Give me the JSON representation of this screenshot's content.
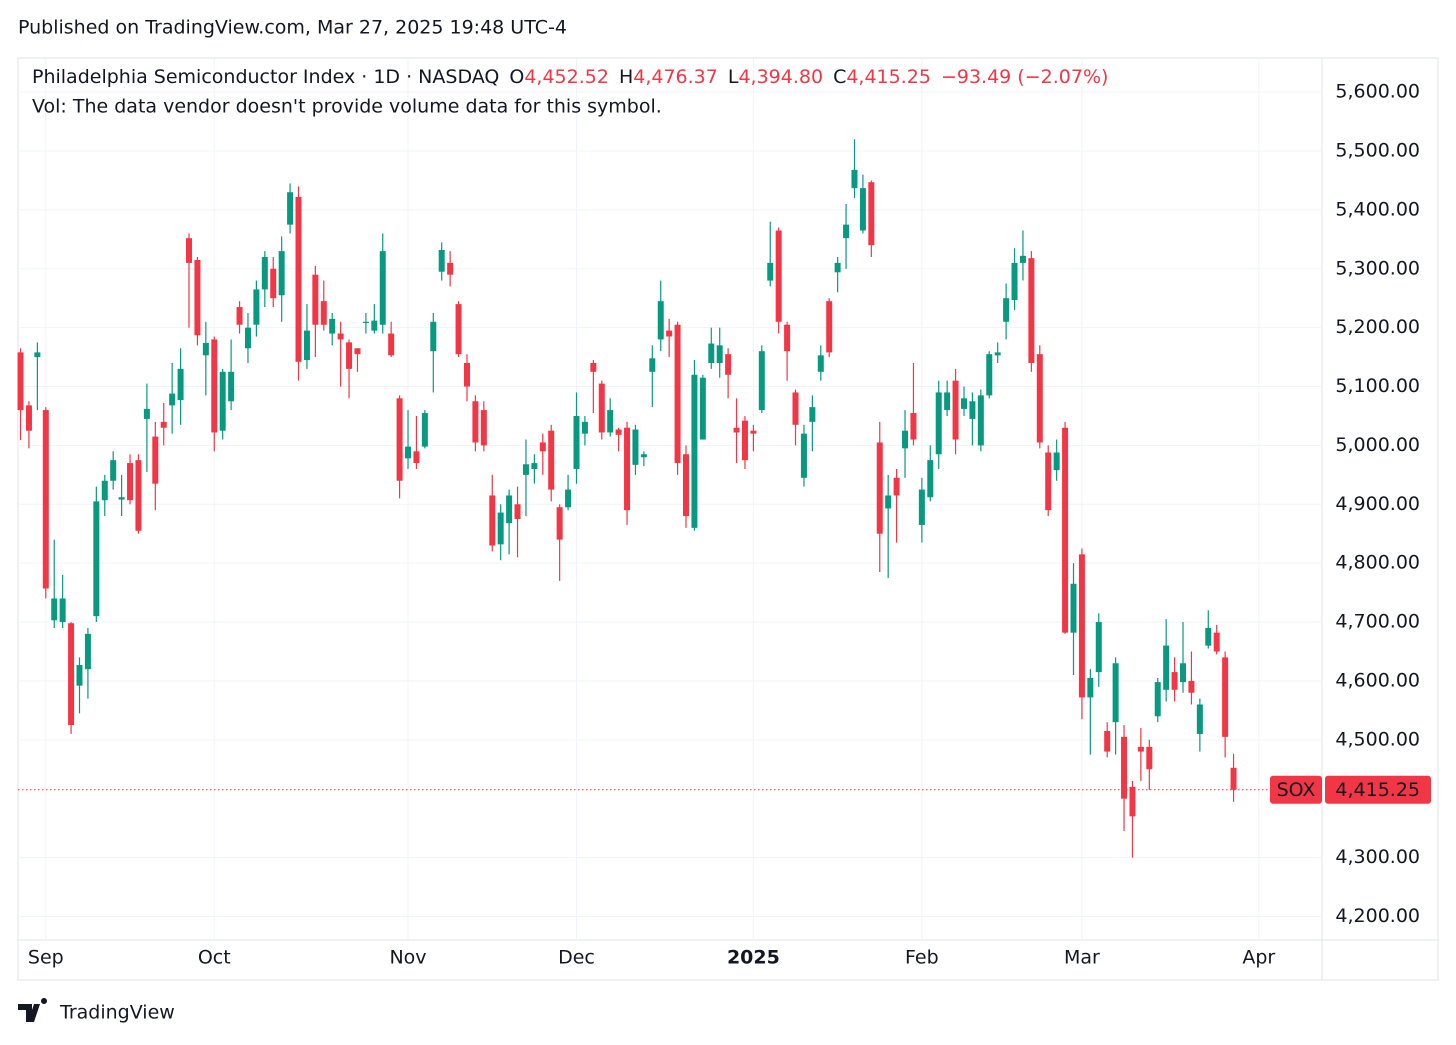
{
  "published": "Published on TradingView.com, Mar 27, 2025 19:48 UTC-4",
  "brand": "TradingView",
  "chart_data": {
    "type": "candlestick",
    "title": "Philadelphia Semiconductor Index · 1D · NASDAQ",
    "legend": {
      "o_label": "O",
      "o": "4,452.52",
      "h_label": "H",
      "h": "4,476.37",
      "l_label": "L",
      "l": "4,394.80",
      "c_label": "C",
      "c": "4,415.25",
      "change": "−93.49 (−2.07%)"
    },
    "volume_note": "Vol: The data vendor doesn't provide volume data for this symbol.",
    "up_color": "#089981",
    "down_color": "#f23645",
    "open": [
      5158,
      5068,
      5150,
      5060,
      4703,
      4700,
      4698,
      4592,
      4620,
      4710,
      4907,
      4940,
      4908,
      4970,
      4975,
      5045,
      5015,
      5040,
      5068,
      5077,
      5352,
      5315,
      5153,
      5180,
      5025,
      5075,
      5235,
      5165,
      5205,
      5265,
      5300,
      5255,
      5375,
      5422,
      5145,
      5290,
      5245,
      5190,
      5190,
      5175,
      5165,
      5208,
      5195,
      5205,
      5190,
      5080,
      4978,
      4990,
      4998,
      5160,
      5295,
      5310,
      5240,
      5140,
      5075,
      5060,
      4915,
      4832,
      4868,
      4900,
      4950,
      4960,
      5005,
      5025,
      4895,
      4895,
      4960,
      5020,
      5140,
      5105,
      5022,
      5027,
      5030,
      4967,
      4980,
      5125,
      5180,
      5195,
      5205,
      4985,
      4860,
      5010,
      5140,
      5140,
      5155,
      5030,
      5042,
      5025,
      5060,
      5280,
      5365,
      5205,
      5090,
      4945,
      5040,
      5125,
      5245,
      5294,
      5352,
      5437,
      5365,
      5447,
      5005,
      4893,
      4945,
      4995,
      5055,
      4865,
      4912,
      4985,
      5060,
      5110,
      5062,
      5045,
      5000,
      5085,
      5153,
      5210,
      5247,
      5310,
      5318,
      5155,
      4988,
      4958,
      5030,
      4682,
      4815,
      4572,
      4615,
      4515,
      4530,
      4505,
      4420,
      4488,
      4488,
      4540,
      4585,
      4615,
      4598,
      4600,
      4510,
      4660,
      4682,
      4640,
      4452.52
    ],
    "high": [
      5165,
      5075,
      5175,
      5065,
      4840,
      4780,
      4700,
      4640,
      4690,
      4930,
      4950,
      4990,
      4950,
      4985,
      4985,
      5105,
      5040,
      5072,
      5140,
      5165,
      5360,
      5320,
      5210,
      5185,
      5130,
      5180,
      5245,
      5225,
      5280,
      5330,
      5320,
      5355,
      5445,
      5440,
      5240,
      5305,
      5280,
      5225,
      5210,
      5180,
      5165,
      5225,
      5240,
      5360,
      5210,
      5085,
      5060,
      5050,
      5060,
      5225,
      5345,
      5330,
      5245,
      5155,
      5085,
      5075,
      4950,
      4900,
      4925,
      4930,
      5010,
      4985,
      5020,
      5035,
      4900,
      4950,
      5090,
      5050,
      5145,
      5110,
      5080,
      5030,
      5040,
      5035,
      4990,
      5170,
      5280,
      5215,
      5210,
      5000,
      5145,
      5120,
      5200,
      5200,
      5165,
      5080,
      5050,
      5035,
      5170,
      5380,
      5370,
      5210,
      5095,
      5035,
      5085,
      5170,
      5250,
      5320,
      5410,
      5520,
      5460,
      5450,
      5040,
      4950,
      4960,
      5060,
      5140,
      4945,
      5000,
      5110,
      5110,
      5130,
      5100,
      5090,
      5095,
      5160,
      5175,
      5275,
      5335,
      5365,
      5330,
      5170,
      5000,
      5010,
      5040,
      4800,
      4825,
      4620,
      4715,
      4530,
      4640,
      4525,
      4430,
      4520,
      4500,
      4605,
      4705,
      4640,
      4700,
      4650,
      4570,
      4720,
      4695,
      4650,
      4476.37
    ],
    "low": [
      5009,
      4995,
      5060,
      4740,
      4690,
      4690,
      4510,
      4545,
      4570,
      4700,
      4880,
      4925,
      4880,
      4900,
      4850,
      4955,
      4890,
      5000,
      5020,
      5035,
      5200,
      5170,
      5085,
      4990,
      5010,
      5060,
      5190,
      5140,
      5185,
      5235,
      5235,
      5210,
      5360,
      5110,
      5130,
      5150,
      5195,
      5170,
      5100,
      5080,
      5125,
      5190,
      5190,
      5190,
      5150,
      4910,
      4960,
      4960,
      4995,
      5090,
      5280,
      5270,
      5150,
      5075,
      4990,
      4990,
      4820,
      4805,
      4815,
      4810,
      4880,
      4935,
      4950,
      4905,
      4770,
      4890,
      4935,
      5000,
      5055,
      5010,
      5015,
      4990,
      4865,
      4950,
      4965,
      5065,
      5160,
      5150,
      4950,
      4860,
      4855,
      5010,
      5130,
      5115,
      5080,
      4970,
      4960,
      4990,
      5055,
      5270,
      5190,
      5110,
      5000,
      4930,
      4990,
      5110,
      5150,
      5260,
      5300,
      5420,
      5360,
      5320,
      4785,
      4775,
      4835,
      4945,
      5000,
      4835,
      4905,
      4960,
      5050,
      4985,
      5050,
      5000,
      4990,
      5080,
      5140,
      5180,
      5230,
      5280,
      5125,
      4995,
      4880,
      4940,
      4680,
      4610,
      4535,
      4475,
      4590,
      4470,
      4475,
      4345,
      4300,
      4430,
      4415,
      4530,
      4565,
      4565,
      4580,
      4560,
      4480,
      4655,
      4645,
      4470,
      4394.8
    ],
    "close": [
      5060,
      5025,
      5158,
      4757,
      4740,
      4740,
      4525,
      4627,
      4680,
      4905,
      4940,
      4975,
      4912,
      4907,
      4855,
      5062,
      4935,
      5030,
      5088,
      5130,
      5310,
      5187,
      5174,
      5022,
      5125,
      5125,
      5205,
      5200,
      5265,
      5320,
      5250,
      5330,
      5430,
      5142,
      5195,
      5205,
      5205,
      5215,
      5180,
      5130,
      5155,
      5210,
      5212,
      5330,
      5153,
      4940,
      4998,
      4970,
      5055,
      5210,
      5332,
      5290,
      5155,
      5100,
      5005,
      5000,
      4830,
      4886,
      4915,
      4875,
      4968,
      4970,
      4990,
      4925,
      4840,
      4925,
      5050,
      5040,
      5125,
      5022,
      5060,
      5018,
      4890,
      5027,
      4985,
      5148,
      5245,
      5185,
      4970,
      4880,
      5120,
      5115,
      5173,
      5170,
      5120,
      5022,
      4975,
      5020,
      5160,
      5310,
      5210,
      5160,
      5035,
      5020,
      5065,
      5153,
      5158,
      5310,
      5375,
      5468,
      5437,
      5340,
      4850,
      4915,
      4915,
      5025,
      5010,
      4925,
      4975,
      5090,
      5090,
      5010,
      5080,
      5075,
      5085,
      5155,
      5158,
      5250,
      5310,
      5322,
      5140,
      5005,
      4890,
      4988,
      4682,
      4765,
      4572,
      4605,
      4700,
      4480,
      4630,
      4400,
      4370,
      4480,
      4450,
      4598,
      4660,
      4585,
      4630,
      4580,
      4560,
      4690,
      4650,
      4505,
      4415.25
    ],
    "xticks": [
      {
        "value": 3,
        "label": "Sep"
      },
      {
        "value": 23,
        "label": "Oct"
      },
      {
        "value": 46,
        "label": "Nov"
      },
      {
        "value": 66,
        "label": "Dec"
      },
      {
        "value": 87,
        "label": "2025"
      },
      {
        "value": 107,
        "label": "Feb"
      },
      {
        "value": 126,
        "label": "Mar"
      },
      {
        "value": 147,
        "label": "Apr"
      }
    ],
    "xlim": [
      -0.3,
      154.5
    ],
    "ylim": [
      4160,
      5658
    ],
    "yticks": [
      {
        "value": 4200,
        "label": "4,200.00"
      },
      {
        "value": 4300,
        "label": "4,300.00"
      },
      {
        "value": 4500,
        "label": "4,500.00"
      },
      {
        "value": 4600,
        "label": "4,600.00"
      },
      {
        "value": 4700,
        "label": "4,700.00"
      },
      {
        "value": 4800,
        "label": "4,800.00"
      },
      {
        "value": 4900,
        "label": "4,900.00"
      },
      {
        "value": 5000,
        "label": "5,000.00"
      },
      {
        "value": 5100,
        "label": "5,100.00"
      },
      {
        "value": 5200,
        "label": "5,200.00"
      },
      {
        "value": 5300,
        "label": "5,300.00"
      },
      {
        "value": 5400,
        "label": "5,400.00"
      },
      {
        "value": 5500,
        "label": "5,500.00"
      },
      {
        "value": 5600,
        "label": "5,600.00"
      }
    ],
    "grid": true,
    "last_price": {
      "value": 4415.25,
      "label": "4,415.25",
      "symbol": "SOX"
    }
  }
}
